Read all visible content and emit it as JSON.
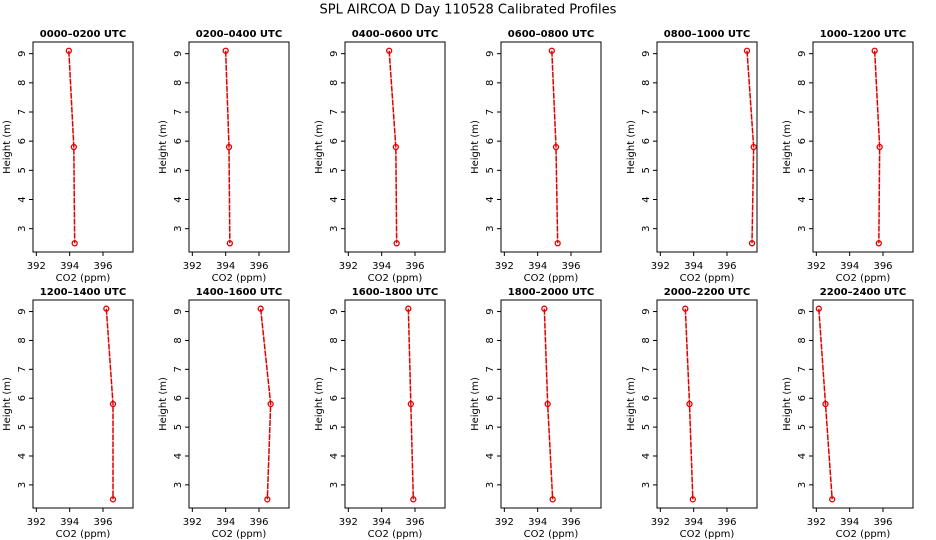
{
  "title": "SPL AIRCOA D  Day 110528  Calibrated Profiles",
  "chart_data": [
    {
      "type": "line",
      "title": "0000–0200 UTC",
      "xlabel": "CO2 (ppm)",
      "ylabel": "Height (m)",
      "x": [
        393.95,
        394.25,
        394.3
      ],
      "values": [
        9.1,
        5.8,
        2.5
      ],
      "color": "#e00000",
      "xlim": [
        391.8,
        397.8
      ],
      "ylim": [
        2.2,
        9.4
      ],
      "xticks": [
        392,
        394,
        396
      ],
      "yticks": [
        3,
        4,
        5,
        6,
        7,
        8,
        9
      ]
    },
    {
      "type": "line",
      "title": "0200–0400 UTC",
      "xlabel": "CO2 (ppm)",
      "ylabel": "Height (m)",
      "x": [
        394.0,
        394.2,
        394.25
      ],
      "values": [
        9.1,
        5.8,
        2.5
      ],
      "color": "#e00000",
      "xlim": [
        391.8,
        397.8
      ],
      "ylim": [
        2.2,
        9.4
      ],
      "xticks": [
        392,
        394,
        396
      ],
      "yticks": [
        3,
        4,
        5,
        6,
        7,
        8,
        9
      ]
    },
    {
      "type": "line",
      "title": "0400–0600 UTC",
      "xlabel": "CO2 (ppm)",
      "ylabel": "Height (m)",
      "x": [
        394.45,
        394.85,
        394.9
      ],
      "values": [
        9.1,
        5.8,
        2.5
      ],
      "color": "#e00000",
      "xlim": [
        391.8,
        397.8
      ],
      "ylim": [
        2.2,
        9.4
      ],
      "xticks": [
        392,
        394,
        396
      ],
      "yticks": [
        3,
        4,
        5,
        6,
        7,
        8,
        9
      ]
    },
    {
      "type": "line",
      "title": "0600–0800 UTC",
      "xlabel": "CO2 (ppm)",
      "ylabel": "Height (m)",
      "x": [
        394.85,
        395.1,
        395.2
      ],
      "values": [
        9.1,
        5.8,
        2.5
      ],
      "color": "#e00000",
      "xlim": [
        391.8,
        397.8
      ],
      "ylim": [
        2.2,
        9.4
      ],
      "xticks": [
        392,
        394,
        396
      ],
      "yticks": [
        3,
        4,
        5,
        6,
        7,
        8,
        9
      ]
    },
    {
      "type": "line",
      "title": "0800–1000 UTC",
      "xlabel": "CO2 (ppm)",
      "ylabel": "Height (m)",
      "x": [
        397.2,
        397.6,
        397.5
      ],
      "values": [
        9.1,
        5.8,
        2.5
      ],
      "color": "#e00000",
      "xlim": [
        391.8,
        397.8
      ],
      "ylim": [
        2.2,
        9.4
      ],
      "xticks": [
        392,
        394,
        396
      ],
      "yticks": [
        3,
        4,
        5,
        6,
        7,
        8,
        9
      ]
    },
    {
      "type": "line",
      "title": "1000–1200 UTC",
      "xlabel": "CO2 (ppm)",
      "ylabel": "Height (m)",
      "x": [
        395.5,
        395.8,
        395.75
      ],
      "values": [
        9.1,
        5.8,
        2.5
      ],
      "color": "#e00000",
      "xlim": [
        391.8,
        397.8
      ],
      "ylim": [
        2.2,
        9.4
      ],
      "xticks": [
        392,
        394,
        396
      ],
      "yticks": [
        3,
        4,
        5,
        6,
        7,
        8,
        9
      ]
    },
    {
      "type": "line",
      "title": "1200–1400 UTC",
      "xlabel": "CO2 (ppm)",
      "ylabel": "Height (m)",
      "x": [
        396.2,
        396.6,
        396.6
      ],
      "values": [
        9.1,
        5.8,
        2.5
      ],
      "color": "#e00000",
      "xlim": [
        391.8,
        397.8
      ],
      "ylim": [
        2.2,
        9.4
      ],
      "xticks": [
        392,
        394,
        396
      ],
      "yticks": [
        3,
        4,
        5,
        6,
        7,
        8,
        9
      ]
    },
    {
      "type": "line",
      "title": "1400–1600 UTC",
      "xlabel": "CO2 (ppm)",
      "ylabel": "Height (m)",
      "x": [
        396.1,
        396.7,
        396.5
      ],
      "values": [
        9.1,
        5.8,
        2.5
      ],
      "color": "#e00000",
      "xlim": [
        391.8,
        397.8
      ],
      "ylim": [
        2.2,
        9.4
      ],
      "xticks": [
        392,
        394,
        396
      ],
      "yticks": [
        3,
        4,
        5,
        6,
        7,
        8,
        9
      ]
    },
    {
      "type": "line",
      "title": "1600–1800 UTC",
      "xlabel": "CO2 (ppm)",
      "ylabel": "Height (m)",
      "x": [
        395.6,
        395.75,
        395.9
      ],
      "values": [
        9.1,
        5.8,
        2.5
      ],
      "color": "#e00000",
      "xlim": [
        391.8,
        397.8
      ],
      "ylim": [
        2.2,
        9.4
      ],
      "xticks": [
        392,
        394,
        396
      ],
      "yticks": [
        3,
        4,
        5,
        6,
        7,
        8,
        9
      ]
    },
    {
      "type": "line",
      "title": "1800–2000 UTC",
      "xlabel": "CO2 (ppm)",
      "ylabel": "Height (m)",
      "x": [
        394.4,
        394.6,
        394.9
      ],
      "values": [
        9.1,
        5.8,
        2.5
      ],
      "color": "#e00000",
      "xlim": [
        391.8,
        397.8
      ],
      "ylim": [
        2.2,
        9.4
      ],
      "xticks": [
        392,
        394,
        396
      ],
      "yticks": [
        3,
        4,
        5,
        6,
        7,
        8,
        9
      ]
    },
    {
      "type": "line",
      "title": "2000–2200 UTC",
      "xlabel": "CO2 (ppm)",
      "ylabel": "Height (m)",
      "x": [
        393.5,
        393.75,
        393.95
      ],
      "values": [
        9.1,
        5.8,
        2.5
      ],
      "color": "#e00000",
      "xlim": [
        391.8,
        397.8
      ],
      "ylim": [
        2.2,
        9.4
      ],
      "xticks": [
        392,
        394,
        396
      ],
      "yticks": [
        3,
        4,
        5,
        6,
        7,
        8,
        9
      ]
    },
    {
      "type": "line",
      "title": "2200–2400 UTC",
      "xlabel": "CO2 (ppm)",
      "ylabel": "Height (m)",
      "x": [
        392.15,
        392.55,
        392.95
      ],
      "values": [
        9.1,
        5.8,
        2.5
      ],
      "color": "#e00000",
      "xlim": [
        391.8,
        397.8
      ],
      "ylim": [
        2.2,
        9.4
      ],
      "xticks": [
        392,
        394,
        396
      ],
      "yticks": [
        3,
        4,
        5,
        6,
        7,
        8,
        9
      ]
    }
  ]
}
